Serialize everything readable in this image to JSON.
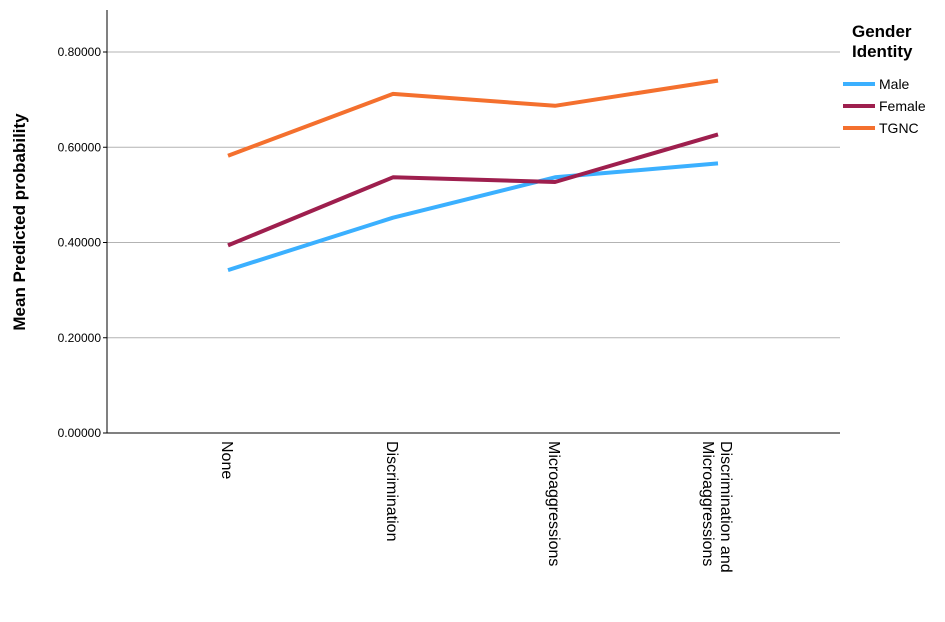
{
  "chart_data": {
    "type": "line",
    "categories": [
      "None",
      "Discrimination",
      "Microaggressions",
      "Discrimination and\nMicroaggressions"
    ],
    "ylabel": "Mean Predicted probability",
    "xlabel": "",
    "ylim": [
      0,
      0.8
    ],
    "yticks": [
      0.0,
      0.2,
      0.4,
      0.6,
      0.8
    ],
    "ytick_labels": [
      "0.00000",
      "0.20000",
      "0.40000",
      "0.60000",
      "0.80000"
    ],
    "grid": true,
    "legend": {
      "title": "Gender Identity",
      "placement": "top-right"
    },
    "series": [
      {
        "name": "Male",
        "color": "#3bb0ff",
        "values": [
          0.342,
          0.452,
          0.537,
          0.566
        ]
      },
      {
        "name": "Female",
        "color": "#9e1f4e",
        "values": [
          0.394,
          0.537,
          0.527,
          0.627
        ]
      },
      {
        "name": "TGNC",
        "color": "#f4702e",
        "values": [
          0.582,
          0.712,
          0.687,
          0.74
        ]
      }
    ]
  }
}
